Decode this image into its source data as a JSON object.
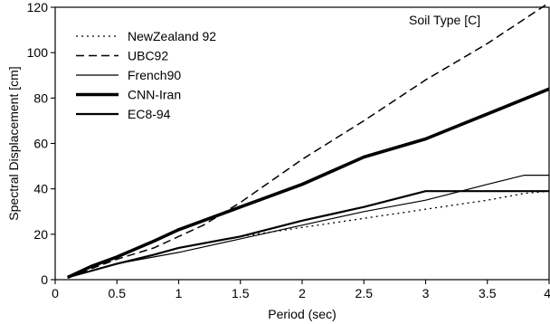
{
  "chart_data": {
    "type": "line",
    "title": "",
    "annotation": "Soil Type [C]",
    "xlabel": "Period (sec)",
    "ylabel": "Spectral Displacement [cm]",
    "xlim": [
      0,
      4
    ],
    "ylim": [
      0,
      120
    ],
    "xticks": [
      0,
      0.5,
      1,
      1.5,
      2,
      2.5,
      3,
      3.5,
      4
    ],
    "xtick_labels": [
      "0",
      "0.5",
      "1",
      "1.5",
      "2",
      "2.5",
      "3",
      "3.5",
      "4"
    ],
    "yticks": [
      0,
      20,
      40,
      60,
      80,
      100,
      120
    ],
    "ytick_labels": [
      "0",
      "20",
      "40",
      "60",
      "80",
      "100",
      "120"
    ],
    "grid": false,
    "legend_position": "top-left",
    "series": [
      {
        "name": "NewZealand 92",
        "style": "dotted",
        "width": 1.3,
        "x": [
          0.1,
          0.3,
          0.5,
          0.8,
          1.0,
          1.5,
          2.0,
          2.5,
          3.0,
          3.5,
          3.8,
          4.0
        ],
        "y": [
          1,
          4,
          7,
          11,
          14,
          19,
          23,
          27,
          31,
          35,
          38,
          39
        ]
      },
      {
        "name": "UBC92",
        "style": "dashed",
        "width": 1.5,
        "x": [
          0.1,
          0.3,
          0.5,
          0.8,
          1.0,
          1.2,
          1.5,
          2.0,
          2.5,
          3.0,
          3.5,
          4.0
        ],
        "y": [
          1,
          5,
          9,
          14,
          19,
          24,
          34,
          53,
          70,
          88,
          104,
          122
        ]
      },
      {
        "name": "French90",
        "style": "solid",
        "width": 1.2,
        "x": [
          0.1,
          0.3,
          0.5,
          0.8,
          1.0,
          1.5,
          2.0,
          2.5,
          3.0,
          3.5,
          3.8,
          4.0
        ],
        "y": [
          1,
          4,
          7,
          10,
          12,
          18,
          24,
          30,
          35,
          42,
          46,
          46
        ]
      },
      {
        "name": "CNN-Iran",
        "style": "solid",
        "width": 3.6,
        "x": [
          0.1,
          0.3,
          0.5,
          0.8,
          1.0,
          1.2,
          1.5,
          2.0,
          2.5,
          3.0,
          3.5,
          4.0
        ],
        "y": [
          1,
          6,
          10,
          17,
          22,
          26,
          32,
          42,
          54,
          62,
          73,
          84
        ]
      },
      {
        "name": "EC8-94",
        "style": "solid",
        "width": 2.2,
        "x": [
          0.1,
          0.3,
          0.5,
          0.8,
          1.0,
          1.5,
          2.0,
          2.5,
          3.0,
          3.25,
          3.5,
          4.0
        ],
        "y": [
          1,
          4,
          7,
          11,
          14,
          19,
          26,
          32,
          39,
          39,
          39,
          39
        ]
      }
    ]
  }
}
